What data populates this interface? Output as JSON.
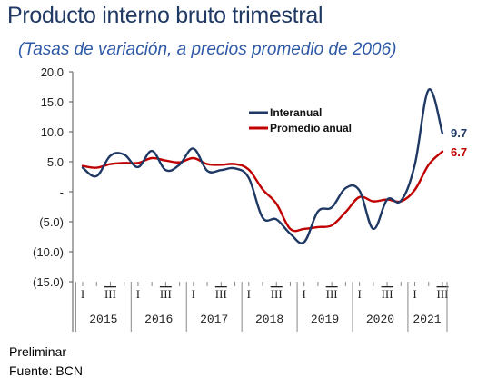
{
  "title": "Producto interno bruto trimestral",
  "subtitle": "(Tasas de variación, a precios promedio de 2006)",
  "footnotes": {
    "preliminar": "Preliminar",
    "fuente": "Fuente: BCN"
  },
  "colors": {
    "title": "#1f3864",
    "subtitle": "#2e59a8",
    "interanual": "#1f3864",
    "promedio": "#c00000",
    "end_interanual": "#1f3864",
    "end_promedio": "#c00000"
  },
  "chart_data": {
    "type": "line",
    "ylim": [
      -15,
      20
    ],
    "yticks": [
      20,
      15,
      10,
      5,
      0,
      -5,
      -10,
      -15
    ],
    "ytick_labels": [
      "20.0",
      "15.0",
      "10.0",
      "5.0",
      "-",
      "(5.0)",
      "(10.0)",
      "(15.0)"
    ],
    "years": [
      "2015",
      "2016",
      "2017",
      "2018",
      "2019",
      "2020",
      "2021"
    ],
    "quarter_labels": [
      "I",
      "II",
      "III",
      "IV"
    ],
    "x": [
      "2015-I",
      "2015-II",
      "2015-III",
      "2015-IV",
      "2016-I",
      "2016-II",
      "2016-III",
      "2016-IV",
      "2017-I",
      "2017-II",
      "2017-III",
      "2017-IV",
      "2018-I",
      "2018-II",
      "2018-III",
      "2018-IV",
      "2019-I",
      "2019-II",
      "2019-III",
      "2019-IV",
      "2020-I",
      "2020-II",
      "2020-III",
      "2020-IV",
      "2021-I",
      "2021-II",
      "2021-III"
    ],
    "series": [
      {
        "name": "Interanual",
        "color": "#1f3864",
        "values": [
          4.0,
          2.6,
          6.0,
          6.2,
          4.1,
          6.8,
          3.6,
          4.5,
          7.2,
          3.5,
          3.6,
          3.9,
          2.3,
          -4.3,
          -4.6,
          -7.0,
          -8.4,
          -3.3,
          -2.6,
          0.6,
          0.2,
          -6.2,
          -1.3,
          -1.5,
          4.5,
          17.0,
          9.7
        ]
      },
      {
        "name": "Promedio anual",
        "color": "#c00000",
        "values": [
          4.3,
          4.0,
          4.6,
          4.8,
          4.8,
          5.6,
          5.2,
          4.9,
          5.6,
          4.6,
          4.5,
          4.6,
          3.7,
          0.4,
          -2.0,
          -6.2,
          -6.2,
          -5.9,
          -5.6,
          -3.4,
          -0.9,
          -1.6,
          -1.3,
          -1.6,
          0.3,
          4.5,
          6.7
        ]
      }
    ],
    "end_labels": [
      "9.7",
      "6.7"
    ],
    "legend": {
      "position": "top-center",
      "entries": [
        "Interanual",
        "Promedio anual"
      ]
    }
  }
}
